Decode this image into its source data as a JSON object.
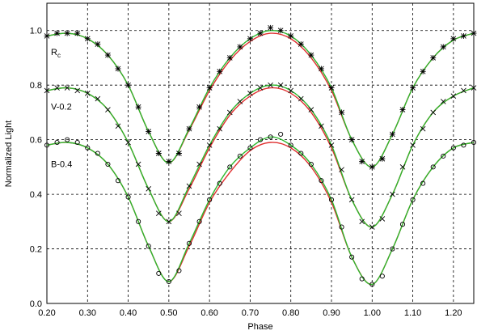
{
  "chart_data": {
    "type": "scatter",
    "xlabel": "Phase",
    "ylabel": "Normalized Light",
    "xlim": [
      0.2,
      1.25
    ],
    "ylim": [
      0,
      1.1
    ],
    "xticks": [
      {
        "value": 0.2,
        "label": "0.20"
      },
      {
        "value": 0.3,
        "label": "0.30"
      },
      {
        "value": 0.4,
        "label": "0.40"
      },
      {
        "value": 0.5,
        "label": "0.50"
      },
      {
        "value": 0.6,
        "label": "0.60"
      },
      {
        "value": 0.7,
        "label": "0.70"
      },
      {
        "value": 0.8,
        "label": "0.80"
      },
      {
        "value": 0.9,
        "label": "0.90"
      },
      {
        "value": 1.0,
        "label": "1.00"
      },
      {
        "value": 1.1,
        "label": "1.10"
      },
      {
        "value": 1.2,
        "label": "1.20"
      }
    ],
    "yticks": [
      {
        "value": 0,
        "label": "0.0"
      },
      {
        "value": 0.2,
        "label": "0.2"
      },
      {
        "value": 0.4,
        "label": "0.4"
      },
      {
        "value": 0.6,
        "label": "0.6"
      },
      {
        "value": 0.8,
        "label": "0.8"
      },
      {
        "value": 1.0,
        "label": "1.0"
      }
    ],
    "grid": true,
    "annotations": [
      {
        "text": "R",
        "sub": "c",
        "x": 0.21,
        "y": 0.91
      },
      {
        "text": "V-0.2",
        "x": 0.21,
        "y": 0.71
      },
      {
        "text": "B-0.4",
        "x": 0.21,
        "y": 0.5
      }
    ],
    "series": [
      {
        "kind": "obs",
        "marker": "asterisk",
        "color": "#000000",
        "x": [
          0.2,
          0.225,
          0.25,
          0.275,
          0.3,
          0.325,
          0.35,
          0.375,
          0.4,
          0.425,
          0.45,
          0.475,
          0.5,
          0.525,
          0.55,
          0.575,
          0.6,
          0.625,
          0.65,
          0.675,
          0.7,
          0.725,
          0.75,
          0.775,
          0.8,
          0.825,
          0.85,
          0.875,
          0.9,
          0.925,
          0.95,
          0.975,
          1.0,
          1.025,
          1.05,
          1.075,
          1.1,
          1.125,
          1.15,
          1.175,
          1.2,
          1.225,
          1.25
        ],
        "values": [
          0.98,
          0.99,
          0.99,
          0.99,
          0.97,
          0.95,
          0.91,
          0.86,
          0.8,
          0.72,
          0.63,
          0.55,
          0.52,
          0.55,
          0.64,
          0.72,
          0.79,
          0.85,
          0.9,
          0.94,
          0.97,
          0.99,
          1.01,
          1.0,
          0.98,
          0.95,
          0.91,
          0.86,
          0.79,
          0.7,
          0.6,
          0.52,
          0.5,
          0.53,
          0.62,
          0.71,
          0.79,
          0.85,
          0.9,
          0.94,
          0.97,
          0.98,
          0.99
        ]
      },
      {
        "kind": "obs",
        "marker": "cross",
        "color": "#000000",
        "x": [
          0.2,
          0.225,
          0.25,
          0.275,
          0.3,
          0.325,
          0.35,
          0.375,
          0.4,
          0.425,
          0.45,
          0.475,
          0.5,
          0.525,
          0.55,
          0.575,
          0.6,
          0.625,
          0.65,
          0.675,
          0.7,
          0.725,
          0.75,
          0.775,
          0.8,
          0.825,
          0.85,
          0.875,
          0.9,
          0.925,
          0.95,
          0.975,
          1.0,
          1.025,
          1.05,
          1.075,
          1.1,
          1.125,
          1.15,
          1.175,
          1.2,
          1.225,
          1.25
        ],
        "values": [
          0.78,
          0.79,
          0.79,
          0.78,
          0.77,
          0.75,
          0.71,
          0.65,
          0.59,
          0.51,
          0.42,
          0.33,
          0.3,
          0.33,
          0.43,
          0.51,
          0.58,
          0.64,
          0.7,
          0.74,
          0.77,
          0.79,
          0.8,
          0.8,
          0.78,
          0.75,
          0.71,
          0.65,
          0.58,
          0.49,
          0.38,
          0.3,
          0.28,
          0.31,
          0.4,
          0.5,
          0.58,
          0.64,
          0.7,
          0.74,
          0.76,
          0.78,
          0.79
        ]
      },
      {
        "kind": "obs",
        "marker": "circle",
        "color": "#000000",
        "x": [
          0.2,
          0.225,
          0.25,
          0.275,
          0.3,
          0.325,
          0.35,
          0.375,
          0.4,
          0.425,
          0.45,
          0.475,
          0.5,
          0.525,
          0.55,
          0.575,
          0.6,
          0.625,
          0.65,
          0.675,
          0.7,
          0.725,
          0.75,
          0.775,
          0.8,
          0.825,
          0.85,
          0.875,
          0.9,
          0.925,
          0.95,
          0.975,
          1.0,
          1.025,
          1.05,
          1.075,
          1.1,
          1.125,
          1.15,
          1.175,
          1.2,
          1.225,
          1.25
        ],
        "values": [
          0.58,
          0.59,
          0.6,
          0.59,
          0.57,
          0.55,
          0.51,
          0.45,
          0.39,
          0.3,
          0.21,
          0.11,
          0.08,
          0.12,
          0.22,
          0.3,
          0.38,
          0.44,
          0.5,
          0.54,
          0.57,
          0.6,
          0.61,
          0.62,
          0.58,
          0.55,
          0.51,
          0.45,
          0.38,
          0.28,
          0.17,
          0.09,
          0.07,
          0.1,
          0.2,
          0.29,
          0.38,
          0.44,
          0.5,
          0.54,
          0.57,
          0.58,
          0.59
        ]
      },
      {
        "kind": "line",
        "color": "#e03030",
        "x": [
          0.2,
          0.25,
          0.3,
          0.35,
          0.4,
          0.45,
          0.5,
          0.55,
          0.6,
          0.65,
          0.7,
          0.75,
          0.8,
          0.85,
          0.9,
          0.95,
          1.0,
          1.05,
          1.1,
          1.15,
          1.2,
          1.25
        ],
        "values": [
          0.98,
          0.99,
          0.97,
          0.91,
          0.8,
          0.63,
          0.515,
          0.635,
          0.78,
          0.89,
          0.96,
          0.99,
          0.97,
          0.9,
          0.78,
          0.6,
          0.5,
          0.62,
          0.79,
          0.9,
          0.965,
          0.99
        ]
      },
      {
        "kind": "line",
        "color": "#e03030",
        "x": [
          0.2,
          0.25,
          0.3,
          0.35,
          0.4,
          0.45,
          0.5,
          0.55,
          0.6,
          0.65,
          0.7,
          0.75,
          0.8,
          0.85,
          0.9,
          0.95,
          1.0,
          1.05,
          1.1,
          1.15,
          1.2,
          1.25
        ],
        "values": [
          0.78,
          0.79,
          0.77,
          0.71,
          0.59,
          0.42,
          0.3,
          0.42,
          0.57,
          0.69,
          0.76,
          0.79,
          0.77,
          0.7,
          0.57,
          0.38,
          0.28,
          0.4,
          0.58,
          0.7,
          0.76,
          0.79
        ]
      },
      {
        "kind": "line",
        "color": "#e03030",
        "x": [
          0.2,
          0.25,
          0.3,
          0.35,
          0.4,
          0.45,
          0.5,
          0.55,
          0.6,
          0.65,
          0.7,
          0.75,
          0.8,
          0.85,
          0.9,
          0.95,
          1.0,
          1.05,
          1.1,
          1.15,
          1.2,
          1.25
        ],
        "values": [
          0.58,
          0.59,
          0.57,
          0.51,
          0.39,
          0.21,
          0.08,
          0.21,
          0.37,
          0.48,
          0.56,
          0.59,
          0.57,
          0.5,
          0.37,
          0.17,
          0.07,
          0.2,
          0.38,
          0.5,
          0.57,
          0.59
        ]
      },
      {
        "kind": "line",
        "color": "#2db82d",
        "x": [
          0.2,
          0.25,
          0.3,
          0.35,
          0.4,
          0.45,
          0.5,
          0.55,
          0.6,
          0.65,
          0.7,
          0.75,
          0.8,
          0.85,
          0.9,
          0.95,
          1.0,
          1.05,
          1.1,
          1.15,
          1.2,
          1.25
        ],
        "values": [
          0.98,
          0.99,
          0.97,
          0.91,
          0.8,
          0.63,
          0.515,
          0.64,
          0.79,
          0.9,
          0.97,
          1.0,
          0.98,
          0.91,
          0.79,
          0.6,
          0.5,
          0.62,
          0.79,
          0.9,
          0.965,
          0.99
        ]
      },
      {
        "kind": "line",
        "color": "#2db82d",
        "x": [
          0.2,
          0.25,
          0.3,
          0.35,
          0.4,
          0.45,
          0.5,
          0.55,
          0.6,
          0.65,
          0.7,
          0.75,
          0.8,
          0.85,
          0.9,
          0.95,
          1.0,
          1.05,
          1.1,
          1.15,
          1.2,
          1.25
        ],
        "values": [
          0.78,
          0.79,
          0.77,
          0.71,
          0.59,
          0.42,
          0.3,
          0.43,
          0.58,
          0.7,
          0.77,
          0.8,
          0.78,
          0.71,
          0.58,
          0.38,
          0.28,
          0.4,
          0.58,
          0.7,
          0.76,
          0.79
        ]
      },
      {
        "kind": "line",
        "color": "#2db82d",
        "x": [
          0.2,
          0.25,
          0.3,
          0.35,
          0.4,
          0.45,
          0.5,
          0.55,
          0.6,
          0.65,
          0.7,
          0.75,
          0.8,
          0.85,
          0.9,
          0.95,
          1.0,
          1.05,
          1.1,
          1.15,
          1.2,
          1.25
        ],
        "values": [
          0.58,
          0.59,
          0.57,
          0.51,
          0.39,
          0.21,
          0.08,
          0.22,
          0.38,
          0.5,
          0.57,
          0.61,
          0.58,
          0.51,
          0.38,
          0.17,
          0.07,
          0.2,
          0.38,
          0.5,
          0.57,
          0.59
        ]
      }
    ]
  }
}
